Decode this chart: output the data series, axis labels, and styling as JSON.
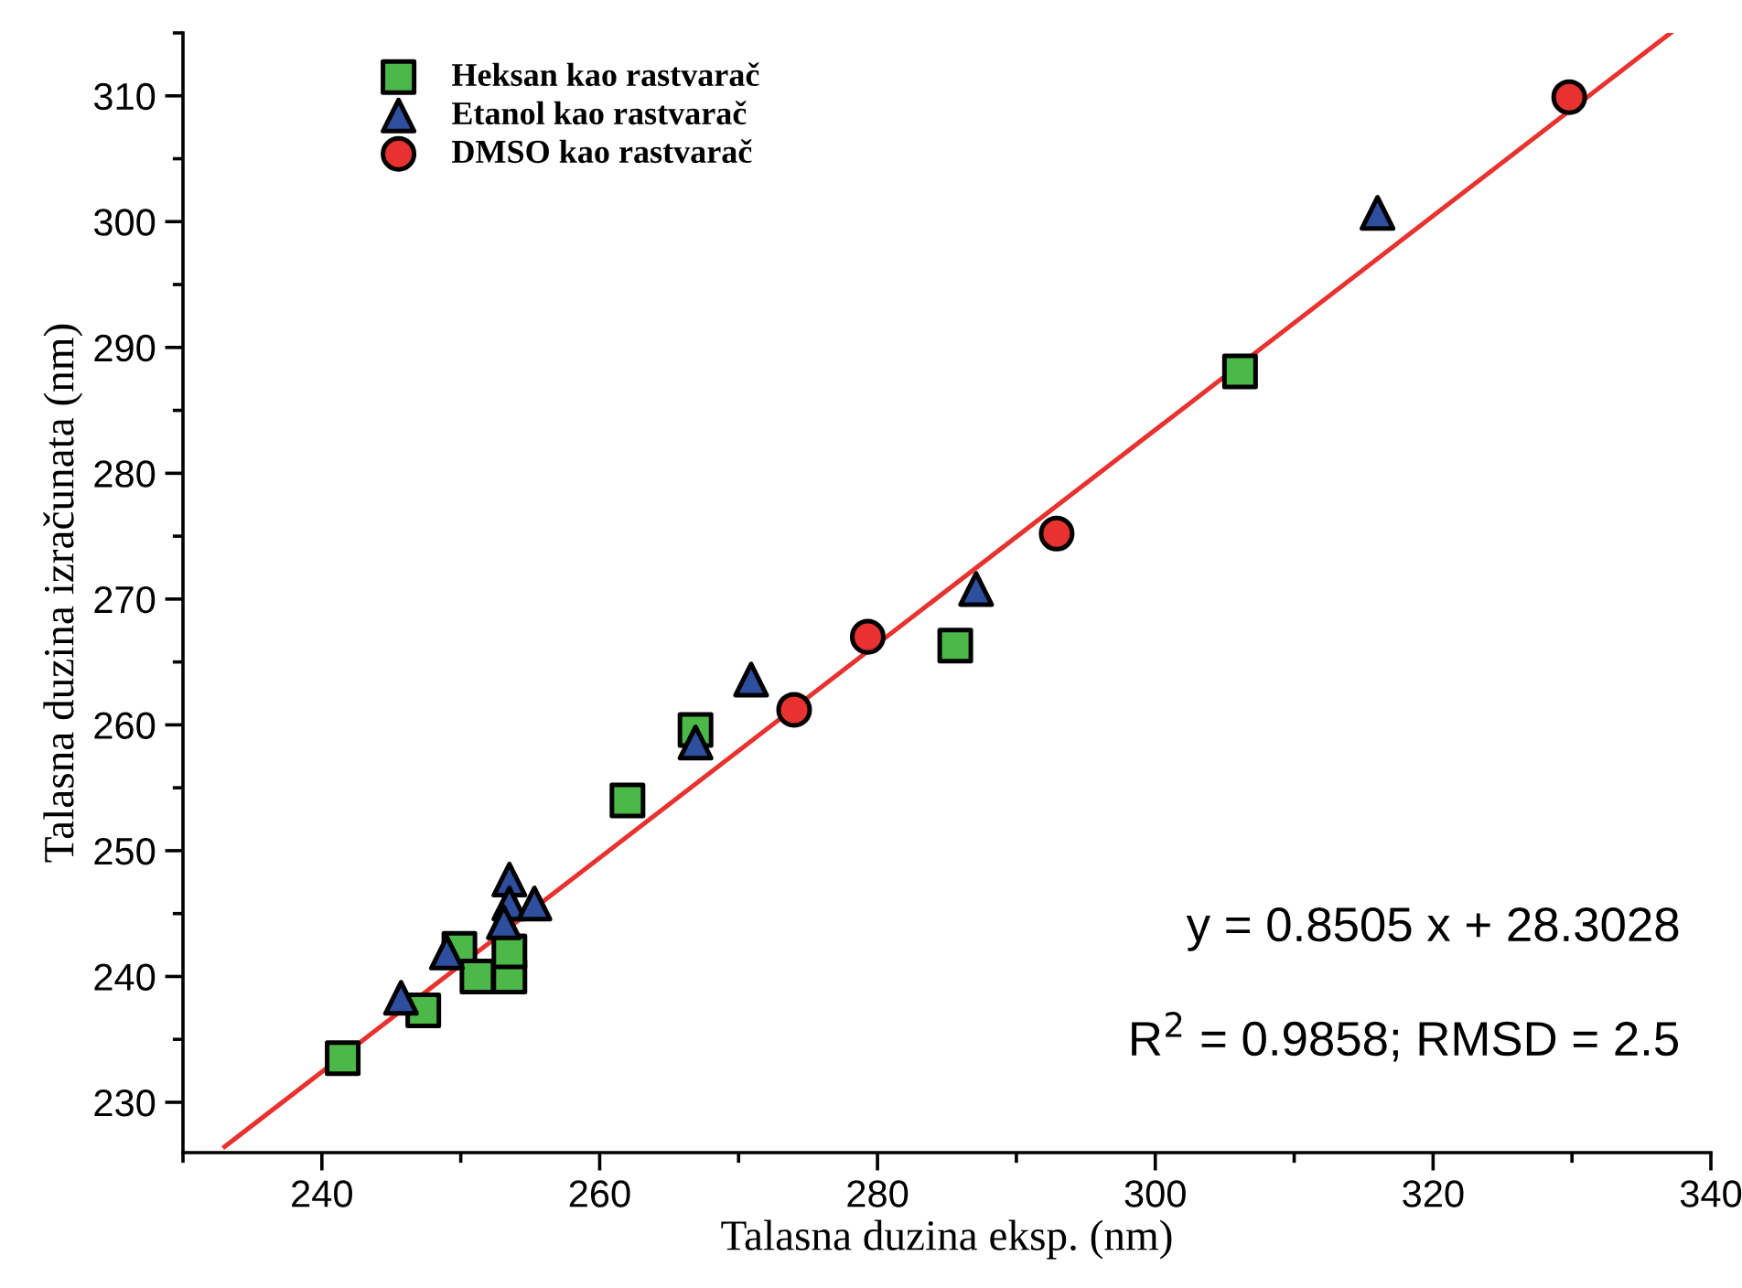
{
  "chart_data": {
    "type": "scatter",
    "xlabel": "Talasna duzina eksp. (nm)",
    "ylabel": "Talasna duzina izračunata (nm)",
    "xlim": [
      230,
      340
    ],
    "ylim": [
      226,
      315
    ],
    "xticks": [
      {
        "value": 230,
        "label": null
      },
      240,
      {
        "value": 250,
        "label": null
      },
      260,
      {
        "value": 270,
        "label": null
      },
      280,
      {
        "value": 290,
        "label": null
      },
      300,
      {
        "value": 310,
        "label": null
      },
      320,
      {
        "value": 330,
        "label": null
      },
      340
    ],
    "yticks": [
      230,
      {
        "value": 235,
        "label": null
      },
      240,
      {
        "value": 245,
        "label": null
      },
      250,
      {
        "value": 255,
        "label": null
      },
      260,
      {
        "value": 265,
        "label": null
      },
      270,
      {
        "value": 275,
        "label": null
      },
      280,
      {
        "value": 285,
        "label": null
      },
      290,
      {
        "value": 295,
        "label": null
      },
      300,
      {
        "value": 305,
        "label": null
      },
      310,
      {
        "value": 315,
        "label": null
      }
    ],
    "grid": false,
    "legend": "top left",
    "series": [
      {
        "name": "Heksan kao rastvarač",
        "color": "#4cb848",
        "marker": "square",
        "x": [
          241.5,
          247.3,
          249.9,
          251.2,
          253.5,
          253.5,
          262,
          266.9,
          285.6,
          306.1
        ],
        "values": [
          233.5,
          237.3,
          242.2,
          240,
          240,
          242,
          254,
          259.6,
          266.3,
          288.1
        ]
      },
      {
        "name": "Etanol kao rastvarač",
        "color": "#2e4e9e",
        "marker": "triangle",
        "x": [
          245.7,
          249,
          253.5,
          253.5,
          255.3,
          253.1,
          270.9,
          287.1,
          266.9,
          316
        ],
        "values": [
          238.3,
          241.9,
          247.7,
          245.8,
          245.8,
          244.3,
          263.6,
          270.8,
          258.6,
          300.7
        ]
      },
      {
        "name": "DMSO kao rastvarač",
        "color": "#e8322f",
        "marker": "circle",
        "x": [
          274,
          279.3,
          292.9,
          329.8
        ],
        "values": [
          261.2,
          267,
          275.2,
          309.9
        ]
      },
      {
        "type": "line",
        "color": "#e8322f",
        "marker": "none",
        "x": [
          233,
          337.1
        ],
        "values": [
          226.47,
          315.0
        ]
      }
    ],
    "annotations": [
      "y = 0.8505 x + 28.3028",
      "R$^{2}$ = 0.9858; RMSD = 2.5"
    ]
  }
}
